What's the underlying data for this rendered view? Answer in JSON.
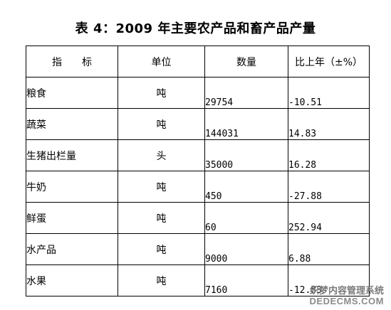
{
  "title": "表 4：2009 年主要农产品和畜产品产量",
  "table": {
    "headers": [
      "指　　标",
      "单位",
      "数量",
      "比上年（±%）"
    ],
    "rows": [
      {
        "name": "粮食",
        "unit": "吨",
        "qty": "29754",
        "chg": "-10.51"
      },
      {
        "name": "蔬菜",
        "unit": "吨",
        "qty": "144031",
        "chg": "14.83"
      },
      {
        "name": "生猪出栏量",
        "unit": "头",
        "qty": "35000",
        "chg": "16.28"
      },
      {
        "name": "牛奶",
        "unit": "吨",
        "qty": "450",
        "chg": "-27.88"
      },
      {
        "name": "鲜蛋",
        "unit": "吨",
        "qty": "60",
        "chg": "252.94"
      },
      {
        "name": "水产品",
        "unit": "吨",
        "qty": "9000",
        "chg": "6.88"
      },
      {
        "name": "水果",
        "unit": "吨",
        "qty": "7160",
        "chg": "-12.83"
      }
    ]
  },
  "watermark": {
    "line1": "织梦内容管理系统",
    "line2": "DEDECMS.COM"
  }
}
